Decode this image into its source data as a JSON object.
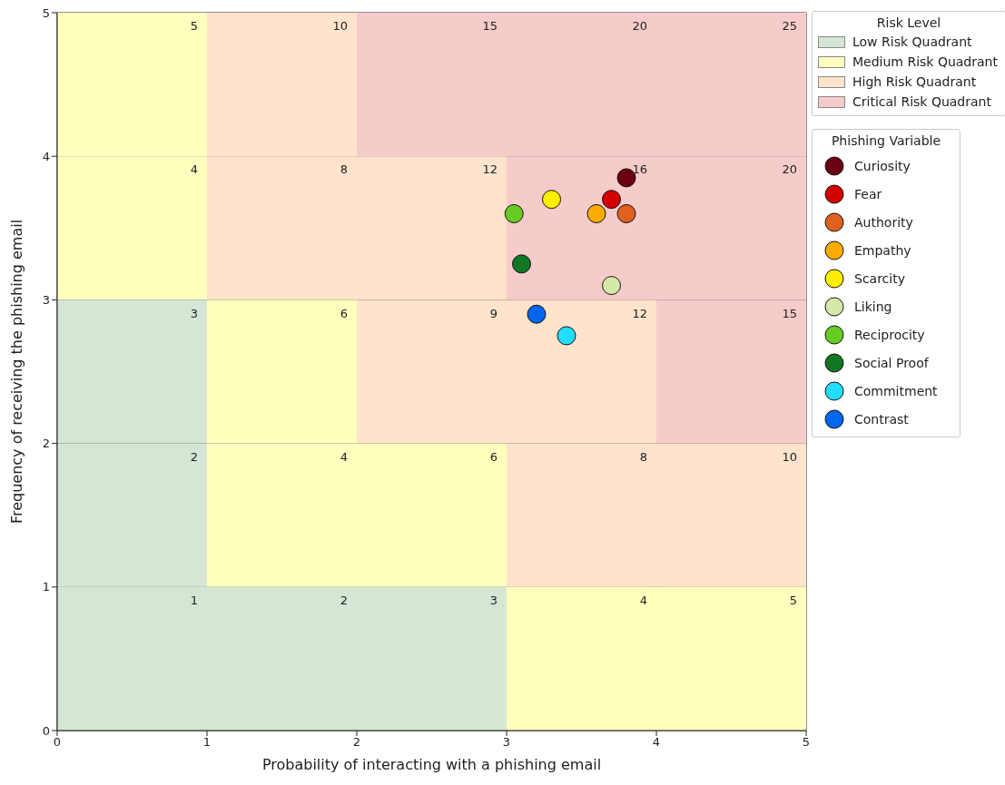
{
  "chart_data": {
    "type": "heatmap",
    "xlabel": "Probability of interacting with a phishing email",
    "ylabel": "Frequency of receiving the phishing email",
    "xlim": [
      0,
      5
    ],
    "ylim": [
      0,
      5
    ],
    "xticks": [
      0,
      1,
      2,
      3,
      4,
      5
    ],
    "yticks": [
      0,
      1,
      2,
      3,
      4,
      5
    ],
    "grid": true,
    "legend": "right",
    "legend_title": "Phishing Variable",
    "annotations": [
      "Risk Level"
    ],
    "marker": "circle",
    "data_labels": true,
    "cells": [
      [
        5,
        10,
        15,
        20,
        25
      ],
      [
        4,
        8,
        12,
        16,
        20
      ],
      [
        3,
        6,
        9,
        12,
        15
      ],
      [
        2,
        4,
        6,
        8,
        10
      ],
      [
        1,
        2,
        3,
        4,
        5
      ]
    ],
    "colors": [
      [
        "#ffffbe",
        "#ffe3cc",
        "#f6cccb",
        "#f6cccb",
        "#f6cccb"
      ],
      [
        "#ffffbe",
        "#ffe3cc",
        "#ffe3cc",
        "#f6cccb",
        "#f6cccb"
      ],
      [
        "#d5e6d4",
        "#ffffbe",
        "#ffe3cc",
        "#ffe3cc",
        "#f6cccb"
      ],
      [
        "#d5e6d4",
        "#ffffbe",
        "#ffffbe",
        "#ffe3cc",
        "#ffe3cc"
      ],
      [
        "#d5e6d4",
        "#d5e6d4",
        "#d5e6d4",
        "#ffffbe",
        "#ffffbe"
      ]
    ],
    "series": [
      {
        "type": "heatmap",
        "name": "Low Risk Quadrant",
        "color": "#d5e6d4"
      },
      {
        "type": "heatmap",
        "name": "Medium Risk Quadrant",
        "color": "#ffffbe"
      },
      {
        "type": "heatmap",
        "name": "High Risk Quadrant",
        "color": "#ffe3cc"
      },
      {
        "type": "heatmap",
        "name": "Critical Risk Quadrant",
        "color": "#f6cccb"
      },
      {
        "type": "scatter",
        "name": "Curiosity",
        "color": "#6b0010",
        "x": [
          3.8
        ],
        "values": [
          3.85
        ],
        "value_labels": [
          null
        ]
      },
      {
        "type": "scatter",
        "name": "Fear",
        "color": "#d40000",
        "x": [
          3.7
        ],
        "values": [
          3.7
        ],
        "value_labels": [
          null
        ]
      },
      {
        "type": "scatter",
        "name": "Authority",
        "color": "#e0601e",
        "x": [
          3.8
        ],
        "values": [
          3.6
        ],
        "value_labels": [
          null
        ]
      },
      {
        "type": "scatter",
        "name": "Empathy",
        "color": "#ffaa00",
        "x": [
          3.6
        ],
        "values": [
          3.6
        ],
        "value_labels": [
          null
        ]
      },
      {
        "type": "scatter",
        "name": "Scarcity",
        "color": "#ffee00",
        "x": [
          3.3
        ],
        "values": [
          3.7
        ],
        "value_labels": [
          null
        ]
      },
      {
        "type": "scatter",
        "name": "Liking",
        "color": "#d6e8a8",
        "x": [
          3.7
        ],
        "values": [
          3.1
        ],
        "value_labels": [
          null
        ]
      },
      {
        "type": "scatter",
        "name": "Reciprocity",
        "color": "#66cc22",
        "x": [
          3.05
        ],
        "values": [
          3.6
        ],
        "value_labels": [
          null
        ]
      },
      {
        "type": "scatter",
        "name": "Social Proof",
        "color": "#117722",
        "x": [
          3.1
        ],
        "values": [
          3.25
        ],
        "value_labels": [
          null
        ]
      },
      {
        "type": "scatter",
        "name": "Commitment",
        "color": "#22ddff",
        "x": [
          3.4
        ],
        "values": [
          2.75
        ],
        "value_labels": [
          null
        ]
      },
      {
        "type": "scatter",
        "name": "Contrast",
        "color": "#0066ee",
        "x": [
          3.2
        ],
        "values": [
          2.9
        ],
        "value_labels": [
          null
        ]
      }
    ]
  }
}
